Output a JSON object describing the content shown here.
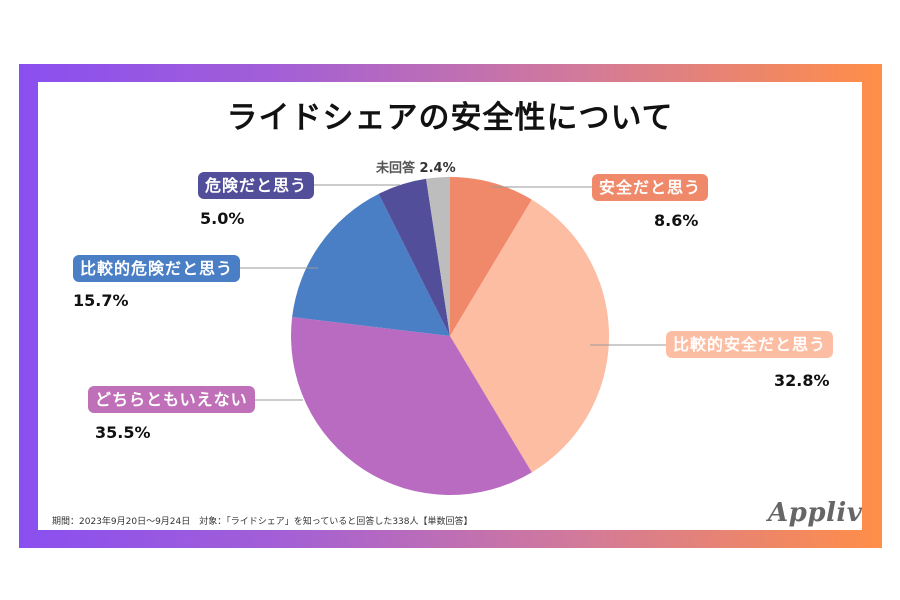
{
  "title": "ライドシェアの安全性について",
  "footnote": "期間：2023年9月20日〜9月24日　対象：「ライドシェア」を知っていると回答した338人【単数回答】",
  "brand": "Appliv",
  "colors": {
    "frame_start": "#8a4ff0",
    "frame_end": "#ff8e48",
    "safe": "#F0896A",
    "somewhat_safe": "#FDBDA3",
    "neither": "#B86BC0",
    "somewhat_dangerous": "#4A7EC5",
    "dangerous": "#534E9A",
    "no_answer": "#BDBDBD"
  },
  "labels": {
    "safe": {
      "name": "安全だと思う",
      "pct": "8.6%"
    },
    "somewhat_safe": {
      "name": "比較的安全だと思う",
      "pct": "32.8%"
    },
    "neither": {
      "name": "どちらともいえない",
      "pct": "35.5%"
    },
    "somewhat_dangerous": {
      "name": "比較的危険だと思う",
      "pct": "15.7%"
    },
    "dangerous": {
      "name": "危険だと思う",
      "pct": "5.0%"
    },
    "no_answer": {
      "name": "未回答",
      "pct": "2.4%"
    }
  },
  "chart_data": {
    "type": "pie",
    "title": "ライドシェアの安全性について",
    "categories": [
      "安全だと思う",
      "比較的安全だと思う",
      "どちらともいえない",
      "比較的危険だと思う",
      "危険だと思う",
      "未回答"
    ],
    "values": [
      8.6,
      32.8,
      35.5,
      15.7,
      5.0,
      2.4
    ],
    "unit": "%",
    "colors": [
      "#F0896A",
      "#FDBDA3",
      "#B86BC0",
      "#4A7EC5",
      "#534E9A",
      "#BDBDBD"
    ],
    "start_angle": "12 o'clock",
    "direction": "clockwise",
    "legend": "none (direct labels with leader lines)",
    "note": "期間：2023年9月20日〜9月24日　対象：「ライドシェア」を知っていると回答した338人【単数回答】",
    "sample_size": 338
  }
}
